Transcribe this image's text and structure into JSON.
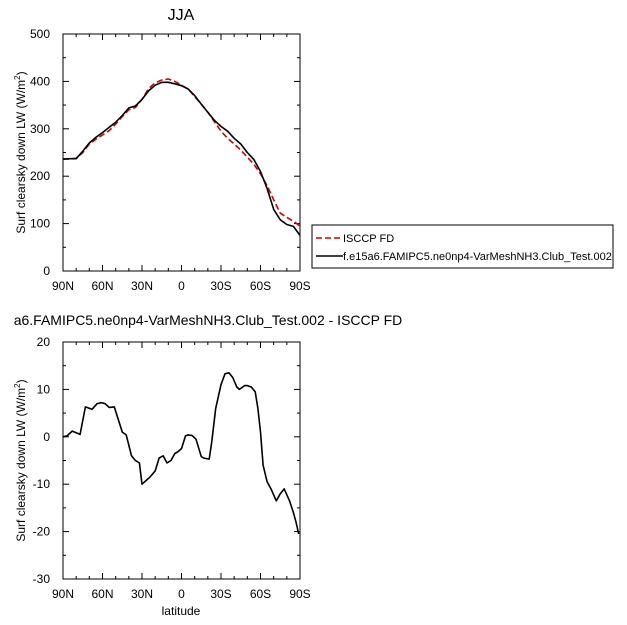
{
  "chart_data": [
    {
      "type": "line",
      "title": "JJA",
      "xlabel": "",
      "ylabel": "Surf clearsky down LW (W/m",
      "ylabel_sup": "2",
      "ylabel_tail": ")",
      "xlim": [
        -90,
        90
      ],
      "ylim": [
        0,
        500
      ],
      "xticks": [
        -90,
        -60,
        -30,
        0,
        30,
        60,
        90
      ],
      "xtick_labels": [
        "90N",
        "60N",
        "30N",
        "0",
        "30S",
        "60S",
        "90S"
      ],
      "yticks": [
        0,
        100,
        200,
        300,
        400,
        500
      ],
      "ytick_labels": [
        "0",
        "100",
        "200",
        "300",
        "400",
        "500"
      ],
      "grid": false,
      "legend_position": "right",
      "series": [
        {
          "name": "ISCCP FD",
          "color": "#d40000",
          "dash": "dashed",
          "x": [
            -90,
            -85,
            -80,
            -75,
            -70,
            -65,
            -60,
            -55,
            -50,
            -45,
            -40,
            -35,
            -30,
            -25,
            -20,
            -15,
            -10,
            -5,
            0,
            5,
            10,
            15,
            20,
            25,
            30,
            35,
            40,
            45,
            50,
            55,
            60,
            65,
            70,
            75,
            80,
            85,
            90
          ],
          "values": [
            236,
            236,
            238,
            250,
            268,
            278,
            287,
            296,
            310,
            326,
            340,
            345,
            362,
            385,
            397,
            403,
            405,
            400,
            392,
            384,
            368,
            352,
            335,
            315,
            295,
            280,
            268,
            255,
            240,
            225,
            205,
            180,
            150,
            122,
            113,
            105,
            95
          ]
        },
        {
          "name": "f.e15a6.FAMIPC5.ne0np4-VarMeshNH3.Club_Test.002",
          "color": "#000000",
          "dash": "solid",
          "x": [
            -90,
            -85,
            -80,
            -75,
            -70,
            -65,
            -60,
            -55,
            -50,
            -45,
            -40,
            -35,
            -30,
            -25,
            -20,
            -15,
            -10,
            -5,
            0,
            5,
            10,
            15,
            20,
            25,
            30,
            35,
            40,
            45,
            50,
            55,
            60,
            65,
            70,
            75,
            80,
            85,
            90
          ],
          "values": [
            236,
            237,
            237,
            253,
            270,
            282,
            292,
            303,
            314,
            328,
            344,
            348,
            362,
            380,
            392,
            398,
            398,
            395,
            391,
            384,
            370,
            352,
            335,
            318,
            305,
            295,
            280,
            268,
            250,
            235,
            210,
            174,
            130,
            108,
            98,
            94,
            75
          ]
        }
      ]
    },
    {
      "type": "line",
      "title": "a6.FAMIPC5.ne0np4-VarMeshNH3.Club_Test.002 - ISCCP FD",
      "xlabel": "latitude",
      "ylabel": "Surf clearsky down LW (W/m",
      "ylabel_sup": "2",
      "ylabel_tail": ")",
      "xlim": [
        -90,
        90
      ],
      "ylim": [
        -30,
        20
      ],
      "xticks": [
        -90,
        -60,
        -30,
        0,
        30,
        60,
        90
      ],
      "xtick_labels": [
        "90N",
        "60N",
        "30N",
        "0",
        "30S",
        "60S",
        "90S"
      ],
      "yticks": [
        -30,
        -20,
        -10,
        0,
        10,
        20
      ],
      "ytick_labels": [
        "-30",
        "-20",
        "-10",
        "0",
        "10",
        "20"
      ],
      "grid": false,
      "series": [
        {
          "color": "#000000",
          "dash": "solid",
          "x": [
            -90,
            -87,
            -83,
            -77,
            -73,
            -68,
            -64,
            -61,
            -58,
            -55,
            -51,
            -49,
            -45,
            -42,
            -38,
            -35,
            -32,
            -30,
            -28,
            -24,
            -20,
            -17,
            -14,
            -11,
            -8,
            -5,
            -3,
            0,
            3,
            5,
            8,
            11,
            15,
            17,
            21,
            23,
            26,
            30,
            33,
            36,
            39,
            42,
            44,
            48,
            50,
            53,
            56,
            58,
            60,
            62,
            65,
            68,
            72,
            75,
            78,
            82,
            85,
            87,
            89
          ],
          "values": [
            0,
            0.2,
            1.2,
            0.5,
            6.3,
            5.8,
            7,
            7.2,
            7,
            6.2,
            6.3,
            4.5,
            1,
            0.4,
            -4,
            -5,
            -5.5,
            -10,
            -9.5,
            -8.5,
            -7.2,
            -4.5,
            -4,
            -5.5,
            -5,
            -3.5,
            -3.2,
            -2.5,
            0.2,
            0.4,
            0.3,
            -0.5,
            -4.2,
            -4.5,
            -4.7,
            -1,
            6,
            11,
            13.3,
            13.5,
            12.5,
            10.5,
            10,
            10.8,
            10.8,
            10.5,
            9.5,
            6,
            1,
            -6,
            -9.5,
            -11,
            -13.5,
            -12,
            -11,
            -13.5,
            -16,
            -18,
            -20.5
          ]
        }
      ]
    }
  ]
}
